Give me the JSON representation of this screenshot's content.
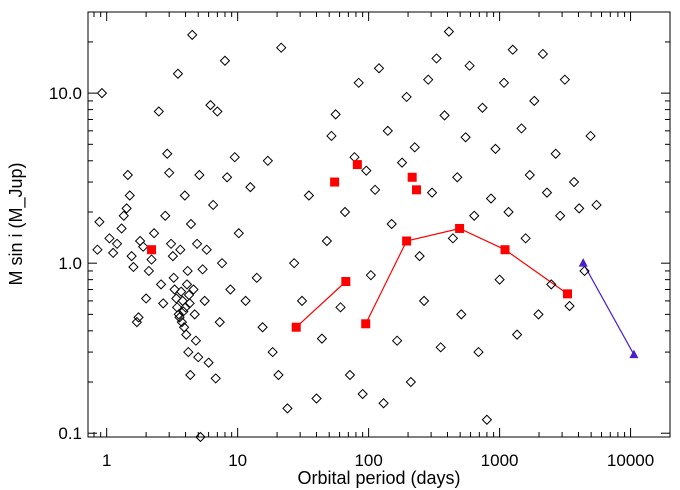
{
  "chart_data": {
    "type": "scatter",
    "title": "",
    "xlabel": "Orbital period (days)",
    "ylabel": "M sin i (M_Jup)",
    "x_scale": "log",
    "y_scale": "log",
    "xlim": [
      0.72,
      20000
    ],
    "ylim": [
      0.095,
      30
    ],
    "x_tick_labels": [
      "1",
      "10",
      "100",
      "1000",
      "10000"
    ],
    "x_tick_values": [
      1,
      10,
      100,
      1000,
      10000
    ],
    "y_tick_labels": [
      "0.1",
      "1.0",
      "10.0"
    ],
    "y_tick_values": [
      0.1,
      1,
      10
    ],
    "grid": false,
    "legend": "none",
    "series": [
      {
        "marker": "diamond-open",
        "color": "#000000",
        "points": [
          [
            0.92,
            10.0
          ],
          [
            0.85,
            1.2
          ],
          [
            0.88,
            1.75
          ],
          [
            1.05,
            1.4
          ],
          [
            1.12,
            1.15
          ],
          [
            1.2,
            1.3
          ],
          [
            1.3,
            1.6
          ],
          [
            1.35,
            1.9
          ],
          [
            1.42,
            2.1
          ],
          [
            1.45,
            3.3
          ],
          [
            1.5,
            2.5
          ],
          [
            1.55,
            1.1
          ],
          [
            1.6,
            0.95
          ],
          [
            1.7,
            0.45
          ],
          [
            1.75,
            0.48
          ],
          [
            1.8,
            1.35
          ],
          [
            1.9,
            1.25
          ],
          [
            2.0,
            0.62
          ],
          [
            2.1,
            0.9
          ],
          [
            2.2,
            1.05
          ],
          [
            2.3,
            1.5
          ],
          [
            2.5,
            7.8
          ],
          [
            2.6,
            0.75
          ],
          [
            2.7,
            0.58
          ],
          [
            2.8,
            1.9
          ],
          [
            2.9,
            4.4
          ],
          [
            3.0,
            3.4
          ],
          [
            3.1,
            1.3
          ],
          [
            3.2,
            1.1
          ],
          [
            3.25,
            0.82
          ],
          [
            3.3,
            0.7
          ],
          [
            3.4,
            0.62
          ],
          [
            3.45,
            0.55
          ],
          [
            3.5,
            13.0
          ],
          [
            3.55,
            0.5
          ],
          [
            3.6,
            0.48
          ],
          [
            3.65,
            1.2
          ],
          [
            3.7,
            0.68
          ],
          [
            3.75,
            0.45
          ],
          [
            3.8,
            0.6
          ],
          [
            3.85,
            0.52
          ],
          [
            3.9,
            0.42
          ],
          [
            3.95,
            2.5
          ],
          [
            4.0,
            0.55
          ],
          [
            4.05,
            0.38
          ],
          [
            4.1,
            0.75
          ],
          [
            4.15,
            0.9
          ],
          [
            4.2,
            0.3
          ],
          [
            4.25,
            0.65
          ],
          [
            4.3,
            0.58
          ],
          [
            4.35,
            0.22
          ],
          [
            4.4,
            1.7
          ],
          [
            4.5,
            22.0
          ],
          [
            4.6,
            0.7
          ],
          [
            4.7,
            0.5
          ],
          [
            4.8,
            0.35
          ],
          [
            4.9,
            1.3
          ],
          [
            5.0,
            0.28
          ],
          [
            5.1,
            3.3
          ],
          [
            5.2,
            0.095
          ],
          [
            5.4,
            0.92
          ],
          [
            5.6,
            0.6
          ],
          [
            5.8,
            1.2
          ],
          [
            6.0,
            0.26
          ],
          [
            6.2,
            8.5
          ],
          [
            6.5,
            2.2
          ],
          [
            6.8,
            0.21
          ],
          [
            7.0,
            7.8
          ],
          [
            7.3,
            0.45
          ],
          [
            7.6,
            1.0
          ],
          [
            8.0,
            15.5
          ],
          [
            8.3,
            3.2
          ],
          [
            8.8,
            0.7
          ],
          [
            9.5,
            4.2
          ],
          [
            10.2,
            1.5
          ],
          [
            11.5,
            0.6
          ],
          [
            12.5,
            2.8
          ],
          [
            14.0,
            0.82
          ],
          [
            15.5,
            0.42
          ],
          [
            17.0,
            4.0
          ],
          [
            18.5,
            0.3
          ],
          [
            20.5,
            0.22
          ],
          [
            21.5,
            18.5
          ],
          [
            24.0,
            0.14
          ],
          [
            27.0,
            1.0
          ],
          [
            31.0,
            0.6
          ],
          [
            35.0,
            2.5
          ],
          [
            40.0,
            0.16
          ],
          [
            44.0,
            0.36
          ],
          [
            48.0,
            1.35
          ],
          [
            52.0,
            5.6
          ],
          [
            56.0,
            7.5
          ],
          [
            61.0,
            0.55
          ],
          [
            66.0,
            2.0
          ],
          [
            72.0,
            0.22
          ],
          [
            78.0,
            4.2
          ],
          [
            84.0,
            11.5
          ],
          [
            90.0,
            0.17
          ],
          [
            96.0,
            3.5
          ],
          [
            104.0,
            0.85
          ],
          [
            112.0,
            2.7
          ],
          [
            120.0,
            14.0
          ],
          [
            130.0,
            0.15
          ],
          [
            140.0,
            6.0
          ],
          [
            150.0,
            1.7
          ],
          [
            165.0,
            0.35
          ],
          [
            180.0,
            3.9
          ],
          [
            195.0,
            9.5
          ],
          [
            210.0,
            0.2
          ],
          [
            225.0,
            4.8
          ],
          [
            245.0,
            1.1
          ],
          [
            265.0,
            0.6
          ],
          [
            285.0,
            12.0
          ],
          [
            305.0,
            2.6
          ],
          [
            330.0,
            16.0
          ],
          [
            355.0,
            0.32
          ],
          [
            380.0,
            7.4
          ],
          [
            410.0,
            23.0
          ],
          [
            440.0,
            1.4
          ],
          [
            475.0,
            3.2
          ],
          [
            510.0,
            0.5
          ],
          [
            550.0,
            5.5
          ],
          [
            590.0,
            14.5
          ],
          [
            640.0,
            1.9
          ],
          [
            690.0,
            0.3
          ],
          [
            740.0,
            8.2
          ],
          [
            800.0,
            0.12
          ],
          [
            860.0,
            2.4
          ],
          [
            930.0,
            4.7
          ],
          [
            1000.0,
            0.8
          ],
          [
            1080.0,
            11.5
          ],
          [
            1170.0,
            2.0
          ],
          [
            1260.0,
            18.0
          ],
          [
            1360.0,
            0.38
          ],
          [
            1470.0,
            6.2
          ],
          [
            1580.0,
            1.4
          ],
          [
            1700.0,
            3.3
          ],
          [
            1840.0,
            9.0
          ],
          [
            1980.0,
            0.5
          ],
          [
            2140.0,
            17.0
          ],
          [
            2300.0,
            2.6
          ],
          [
            2480.0,
            0.75
          ],
          [
            2680.0,
            4.4
          ],
          [
            2900.0,
            1.9
          ],
          [
            3150.0,
            12.0
          ],
          [
            3420.0,
            0.56
          ],
          [
            3700.0,
            3.0
          ],
          [
            4050.0,
            2.1
          ],
          [
            4450.0,
            0.9
          ],
          [
            4950.0,
            5.6
          ],
          [
            5500.0,
            2.2
          ]
        ]
      },
      {
        "marker": "square-filled",
        "color": "#ff0000",
        "points": [
          [
            2.2,
            1.2
          ],
          [
            55.0,
            3.0
          ],
          [
            82.0,
            3.8
          ],
          [
            215.0,
            3.2
          ],
          [
            232.0,
            2.7
          ]
        ]
      },
      {
        "marker": "square-filled-line",
        "color": "#ff0000",
        "points": [
          [
            28.0,
            0.42
          ],
          [
            67.0,
            0.78
          ]
        ]
      },
      {
        "marker": "square-filled-line",
        "color": "#ff0000",
        "points": [
          [
            95.0,
            0.44
          ],
          [
            195.0,
            1.35
          ],
          [
            495.0,
            1.6
          ],
          [
            1100.0,
            1.2
          ],
          [
            3300.0,
            0.66
          ]
        ]
      },
      {
        "marker": "triangle-filled-line",
        "color": "#4b1fd0",
        "points": [
          [
            4350.0,
            1.0
          ],
          [
            10600.0,
            0.29
          ]
        ]
      }
    ]
  }
}
